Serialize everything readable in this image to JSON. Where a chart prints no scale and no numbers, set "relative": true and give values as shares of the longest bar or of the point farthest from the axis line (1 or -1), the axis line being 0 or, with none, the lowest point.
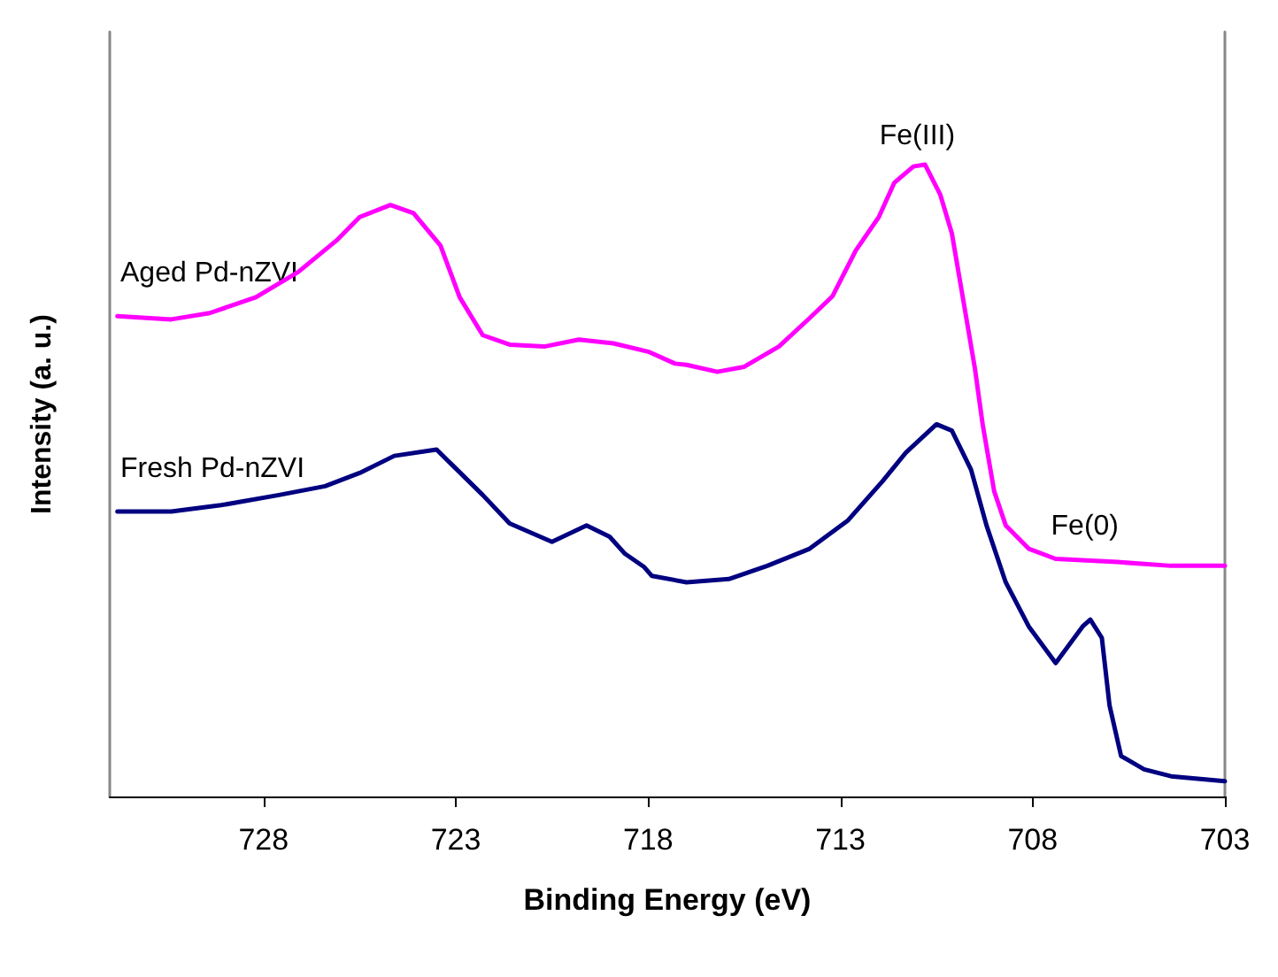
{
  "chart_data": {
    "type": "line",
    "xlabel": "Binding Energy (eV)",
    "ylabel": "Intensity (a. u.)",
    "relative": true,
    "xlim": [
      732,
      703
    ],
    "xticks": [
      728,
      723,
      718,
      713,
      708,
      703
    ],
    "grid": false,
    "legend": false,
    "marker": "none",
    "line_style": "solid",
    "annotations": [
      {
        "text": "Fe(III)",
        "x": 711.0,
        "y": 1.0
      },
      "Fe(0)"
    ],
    "series": [
      {
        "name": "Aged Pd-nZVI",
        "color": "#ff00ff",
        "x": [
          731.8,
          730.4,
          729.4,
          728.2,
          727.1,
          726.1,
          725.5,
          724.7,
          724.1,
          723.4,
          722.9,
          722.3,
          721.6,
          720.7,
          719.8,
          718.9,
          718.0,
          717.3,
          717.0,
          716.2,
          715.5,
          714.6,
          713.8,
          713.2,
          712.6,
          712.0,
          711.6,
          711.1,
          710.8,
          710.4,
          710.1,
          709.8,
          709.5,
          709.3,
          709.0,
          708.7,
          708.1,
          707.4,
          705.8,
          704.4,
          703.0
        ],
        "values": [
          0.76,
          0.755,
          0.765,
          0.79,
          0.83,
          0.88,
          0.917,
          0.936,
          0.923,
          0.872,
          0.79,
          0.73,
          0.715,
          0.712,
          0.723,
          0.717,
          0.704,
          0.685,
          0.683,
          0.672,
          0.68,
          0.712,
          0.757,
          0.792,
          0.864,
          0.917,
          0.971,
          0.997,
          1.0,
          0.952,
          0.891,
          0.784,
          0.677,
          0.589,
          0.483,
          0.429,
          0.392,
          0.376,
          0.371,
          0.365,
          0.365
        ]
      },
      {
        "name": "Fresh Pd-nZVI",
        "color": "#000080",
        "x": [
          731.8,
          730.4,
          729.1,
          727.6,
          726.4,
          725.5,
          724.6,
          723.5,
          723.1,
          722.3,
          721.6,
          720.5,
          719.6,
          719.0,
          718.6,
          718.1,
          717.9,
          717.0,
          715.9,
          714.9,
          713.8,
          712.8,
          711.9,
          711.3,
          710.5,
          710.1,
          709.6,
          709.2,
          708.7,
          708.1,
          707.4,
          706.7,
          706.5,
          706.2,
          706.0,
          705.7,
          705.1,
          704.4,
          703.0
        ],
        "values": [
          0.451,
          0.451,
          0.461,
          0.477,
          0.491,
          0.512,
          0.539,
          0.549,
          0.525,
          0.477,
          0.432,
          0.403,
          0.429,
          0.411,
          0.384,
          0.363,
          0.349,
          0.339,
          0.344,
          0.365,
          0.392,
          0.437,
          0.499,
          0.544,
          0.589,
          0.579,
          0.517,
          0.429,
          0.339,
          0.269,
          0.211,
          0.269,
          0.28,
          0.251,
          0.144,
          0.064,
          0.043,
          0.032,
          0.024
        ]
      }
    ]
  }
}
